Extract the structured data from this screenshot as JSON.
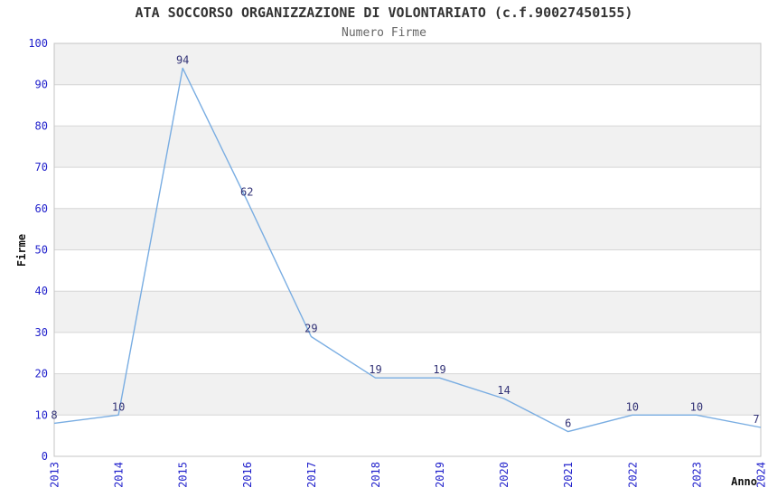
{
  "chart_data": {
    "type": "line",
    "title": "ATA SOCCORSO ORGANIZZAZIONE DI VOLONTARIATO (c.f.90027450155)",
    "subtitle": "Numero Firme",
    "xlabel": "Anno",
    "ylabel": "Firme",
    "categories": [
      "2013",
      "2014",
      "2015",
      "2016",
      "2017",
      "2018",
      "2019",
      "2020",
      "2021",
      "2022",
      "2023",
      "2024"
    ],
    "values": [
      8,
      10,
      94,
      62,
      29,
      19,
      19,
      14,
      6,
      10,
      10,
      7
    ],
    "ylim": [
      0,
      100
    ],
    "ytick_step": 10,
    "grid": "horizontal",
    "legend": "none",
    "alternating_bands": true,
    "colors": {
      "line": "#79ade2",
      "data_label": "#333377",
      "tick_label": "#2222cc",
      "band": "#f1f1f1",
      "gridline": "#d6d6d6",
      "plot_border": "#c4c4c4",
      "title": "#333333",
      "subtitle": "#666666",
      "axis_title": "#111111",
      "background": "#ffffff"
    }
  }
}
